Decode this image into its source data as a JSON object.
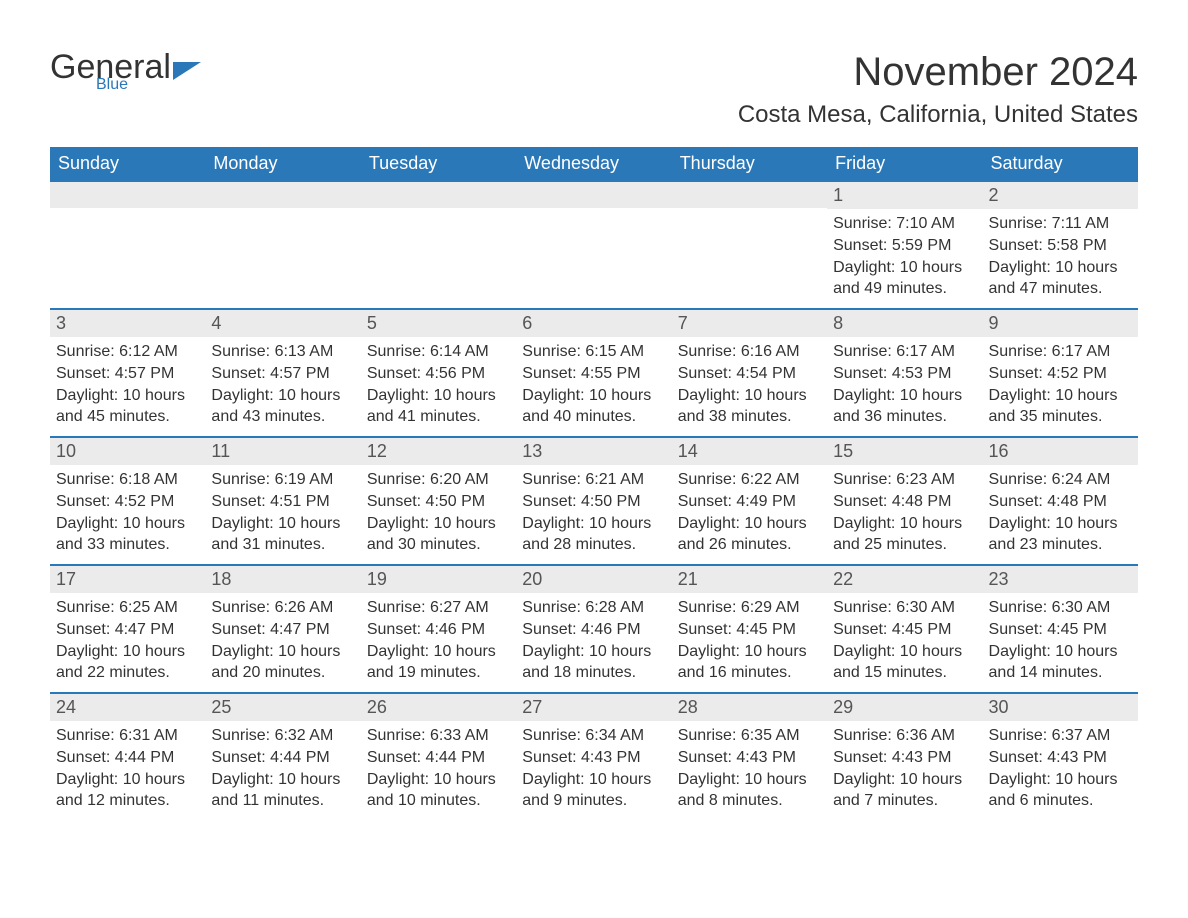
{
  "brand": {
    "part1": "General",
    "part2": "Blue"
  },
  "title": "November 2024",
  "location": "Costa Mesa, California, United States",
  "colors": {
    "brand_blue": "#2b78b8",
    "header_bg": "#2b78b8",
    "header_text": "#ffffff",
    "day_header_bg": "#ebebeb",
    "text": "#333333",
    "background": "#ffffff"
  },
  "typography": {
    "title_fontsize": 40,
    "location_fontsize": 24,
    "dayheader_fontsize": 18,
    "body_fontsize": 16
  },
  "calendar": {
    "type": "table",
    "columns": [
      "Sunday",
      "Monday",
      "Tuesday",
      "Wednesday",
      "Thursday",
      "Friday",
      "Saturday"
    ],
    "weeks": [
      [
        {
          "day": "",
          "sunrise": "",
          "sunset": "",
          "daylight": ""
        },
        {
          "day": "",
          "sunrise": "",
          "sunset": "",
          "daylight": ""
        },
        {
          "day": "",
          "sunrise": "",
          "sunset": "",
          "daylight": ""
        },
        {
          "day": "",
          "sunrise": "",
          "sunset": "",
          "daylight": ""
        },
        {
          "day": "",
          "sunrise": "",
          "sunset": "",
          "daylight": ""
        },
        {
          "day": "1",
          "sunrise": "Sunrise: 7:10 AM",
          "sunset": "Sunset: 5:59 PM",
          "daylight": "Daylight: 10 hours and 49 minutes."
        },
        {
          "day": "2",
          "sunrise": "Sunrise: 7:11 AM",
          "sunset": "Sunset: 5:58 PM",
          "daylight": "Daylight: 10 hours and 47 minutes."
        }
      ],
      [
        {
          "day": "3",
          "sunrise": "Sunrise: 6:12 AM",
          "sunset": "Sunset: 4:57 PM",
          "daylight": "Daylight: 10 hours and 45 minutes."
        },
        {
          "day": "4",
          "sunrise": "Sunrise: 6:13 AM",
          "sunset": "Sunset: 4:57 PM",
          "daylight": "Daylight: 10 hours and 43 minutes."
        },
        {
          "day": "5",
          "sunrise": "Sunrise: 6:14 AM",
          "sunset": "Sunset: 4:56 PM",
          "daylight": "Daylight: 10 hours and 41 minutes."
        },
        {
          "day": "6",
          "sunrise": "Sunrise: 6:15 AM",
          "sunset": "Sunset: 4:55 PM",
          "daylight": "Daylight: 10 hours and 40 minutes."
        },
        {
          "day": "7",
          "sunrise": "Sunrise: 6:16 AM",
          "sunset": "Sunset: 4:54 PM",
          "daylight": "Daylight: 10 hours and 38 minutes."
        },
        {
          "day": "8",
          "sunrise": "Sunrise: 6:17 AM",
          "sunset": "Sunset: 4:53 PM",
          "daylight": "Daylight: 10 hours and 36 minutes."
        },
        {
          "day": "9",
          "sunrise": "Sunrise: 6:17 AM",
          "sunset": "Sunset: 4:52 PM",
          "daylight": "Daylight: 10 hours and 35 minutes."
        }
      ],
      [
        {
          "day": "10",
          "sunrise": "Sunrise: 6:18 AM",
          "sunset": "Sunset: 4:52 PM",
          "daylight": "Daylight: 10 hours and 33 minutes."
        },
        {
          "day": "11",
          "sunrise": "Sunrise: 6:19 AM",
          "sunset": "Sunset: 4:51 PM",
          "daylight": "Daylight: 10 hours and 31 minutes."
        },
        {
          "day": "12",
          "sunrise": "Sunrise: 6:20 AM",
          "sunset": "Sunset: 4:50 PM",
          "daylight": "Daylight: 10 hours and 30 minutes."
        },
        {
          "day": "13",
          "sunrise": "Sunrise: 6:21 AM",
          "sunset": "Sunset: 4:50 PM",
          "daylight": "Daylight: 10 hours and 28 minutes."
        },
        {
          "day": "14",
          "sunrise": "Sunrise: 6:22 AM",
          "sunset": "Sunset: 4:49 PM",
          "daylight": "Daylight: 10 hours and 26 minutes."
        },
        {
          "day": "15",
          "sunrise": "Sunrise: 6:23 AM",
          "sunset": "Sunset: 4:48 PM",
          "daylight": "Daylight: 10 hours and 25 minutes."
        },
        {
          "day": "16",
          "sunrise": "Sunrise: 6:24 AM",
          "sunset": "Sunset: 4:48 PM",
          "daylight": "Daylight: 10 hours and 23 minutes."
        }
      ],
      [
        {
          "day": "17",
          "sunrise": "Sunrise: 6:25 AM",
          "sunset": "Sunset: 4:47 PM",
          "daylight": "Daylight: 10 hours and 22 minutes."
        },
        {
          "day": "18",
          "sunrise": "Sunrise: 6:26 AM",
          "sunset": "Sunset: 4:47 PM",
          "daylight": "Daylight: 10 hours and 20 minutes."
        },
        {
          "day": "19",
          "sunrise": "Sunrise: 6:27 AM",
          "sunset": "Sunset: 4:46 PM",
          "daylight": "Daylight: 10 hours and 19 minutes."
        },
        {
          "day": "20",
          "sunrise": "Sunrise: 6:28 AM",
          "sunset": "Sunset: 4:46 PM",
          "daylight": "Daylight: 10 hours and 18 minutes."
        },
        {
          "day": "21",
          "sunrise": "Sunrise: 6:29 AM",
          "sunset": "Sunset: 4:45 PM",
          "daylight": "Daylight: 10 hours and 16 minutes."
        },
        {
          "day": "22",
          "sunrise": "Sunrise: 6:30 AM",
          "sunset": "Sunset: 4:45 PM",
          "daylight": "Daylight: 10 hours and 15 minutes."
        },
        {
          "day": "23",
          "sunrise": "Sunrise: 6:30 AM",
          "sunset": "Sunset: 4:45 PM",
          "daylight": "Daylight: 10 hours and 14 minutes."
        }
      ],
      [
        {
          "day": "24",
          "sunrise": "Sunrise: 6:31 AM",
          "sunset": "Sunset: 4:44 PM",
          "daylight": "Daylight: 10 hours and 12 minutes."
        },
        {
          "day": "25",
          "sunrise": "Sunrise: 6:32 AM",
          "sunset": "Sunset: 4:44 PM",
          "daylight": "Daylight: 10 hours and 11 minutes."
        },
        {
          "day": "26",
          "sunrise": "Sunrise: 6:33 AM",
          "sunset": "Sunset: 4:44 PM",
          "daylight": "Daylight: 10 hours and 10 minutes."
        },
        {
          "day": "27",
          "sunrise": "Sunrise: 6:34 AM",
          "sunset": "Sunset: 4:43 PM",
          "daylight": "Daylight: 10 hours and 9 minutes."
        },
        {
          "day": "28",
          "sunrise": "Sunrise: 6:35 AM",
          "sunset": "Sunset: 4:43 PM",
          "daylight": "Daylight: 10 hours and 8 minutes."
        },
        {
          "day": "29",
          "sunrise": "Sunrise: 6:36 AM",
          "sunset": "Sunset: 4:43 PM",
          "daylight": "Daylight: 10 hours and 7 minutes."
        },
        {
          "day": "30",
          "sunrise": "Sunrise: 6:37 AM",
          "sunset": "Sunset: 4:43 PM",
          "daylight": "Daylight: 10 hours and 6 minutes."
        }
      ]
    ]
  }
}
